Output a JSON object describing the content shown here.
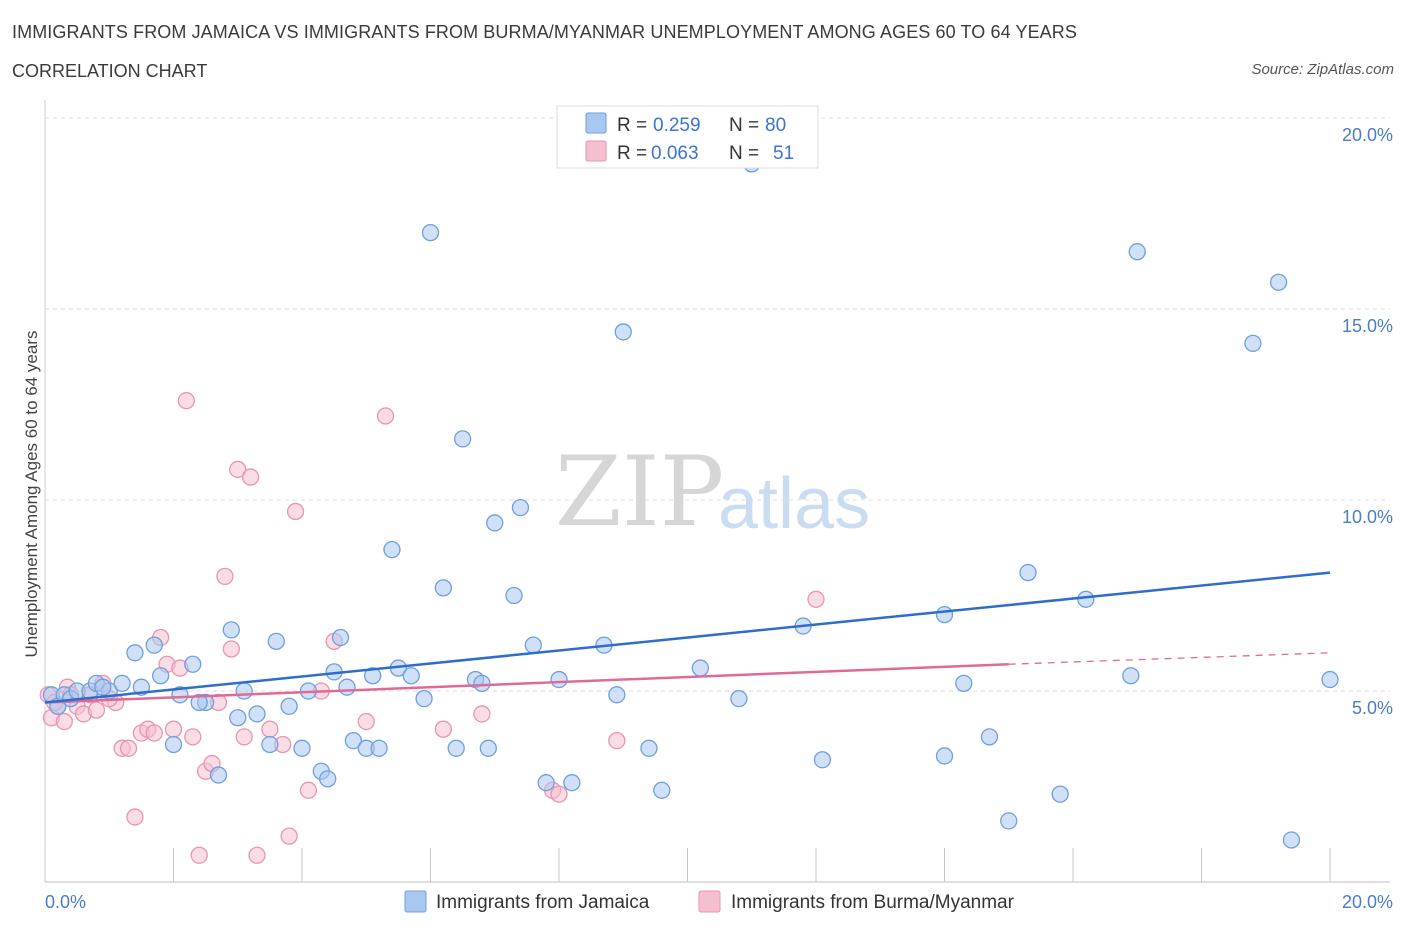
{
  "title": "IMMIGRANTS FROM JAMAICA VS IMMIGRANTS FROM BURMA/MYANMAR UNEMPLOYMENT AMONG AGES 60 TO 64 YEARS",
  "subtitle": "CORRELATION CHART",
  "source": "Source: ZipAtlas.com",
  "watermark": {
    "zip": "ZIP",
    "atlas": "atlas"
  },
  "colors": {
    "jamaica_fill": "#a9c8f0",
    "jamaica_stroke": "#6f9fdc",
    "jamaica_line": "#2f6ccc",
    "burma_fill": "#f6bfd0",
    "burma_stroke": "#e895b0",
    "burma_line": "#e06a97",
    "grid": "#dcdcdc",
    "axis_text": "#4a7cc7"
  },
  "legend": {
    "rows": [
      {
        "r_label": "R =",
        "r_value": "0.259",
        "n_label": "N =",
        "n_value": "80"
      },
      {
        "r_label": "R =",
        "r_value": "0.063",
        "n_label": "N =",
        "n_value": "51"
      }
    ]
  },
  "chart_data": {
    "type": "scatter",
    "title": "IMMIGRANTS FROM JAMAICA VS IMMIGRANTS FROM BURMA/MYANMAR UNEMPLOYMENT AMONG AGES 60 TO 64 YEARS",
    "xlabel": "",
    "ylabel": "Unemployment Among Ages 60 to 64 years",
    "xlim": [
      0,
      20
    ],
    "ylim": [
      0,
      20
    ],
    "x_tick_labels": [
      "0.0%",
      "20.0%"
    ],
    "y_ticks": [
      5,
      10,
      15,
      20
    ],
    "y_tick_labels": [
      "5.0%",
      "10.0%",
      "15.0%",
      "20.0%"
    ],
    "legend_position": "top-center",
    "series": [
      {
        "name": "Immigrants from Jamaica",
        "r": 0.259,
        "n": 80,
        "trend": {
          "x": [
            0,
            20
          ],
          "y": [
            4.7,
            8.1
          ]
        },
        "points": [
          [
            0.1,
            4.9
          ],
          [
            0.2,
            4.6
          ],
          [
            0.3,
            4.9
          ],
          [
            0.4,
            4.8
          ],
          [
            0.5,
            5.0
          ],
          [
            0.7,
            5.0
          ],
          [
            0.8,
            5.2
          ],
          [
            1.0,
            5.0
          ],
          [
            1.2,
            5.2
          ],
          [
            1.4,
            6.0
          ],
          [
            1.7,
            6.2
          ],
          [
            1.8,
            5.4
          ],
          [
            2.0,
            3.6
          ],
          [
            2.1,
            4.9
          ],
          [
            2.3,
            5.7
          ],
          [
            2.5,
            4.7
          ],
          [
            2.7,
            2.8
          ],
          [
            2.9,
            6.6
          ],
          [
            3.1,
            5.0
          ],
          [
            3.3,
            4.4
          ],
          [
            3.5,
            3.6
          ],
          [
            3.6,
            6.3
          ],
          [
            3.8,
            4.6
          ],
          [
            4.0,
            3.5
          ],
          [
            4.1,
            5.0
          ],
          [
            4.3,
            2.9
          ],
          [
            4.4,
            2.7
          ],
          [
            4.5,
            5.5
          ],
          [
            4.6,
            6.4
          ],
          [
            4.8,
            3.7
          ],
          [
            5.0,
            3.5
          ],
          [
            5.2,
            3.5
          ],
          [
            5.4,
            8.7
          ],
          [
            5.5,
            5.6
          ],
          [
            5.7,
            5.4
          ],
          [
            5.9,
            4.8
          ],
          [
            6.0,
            17.0
          ],
          [
            6.2,
            7.7
          ],
          [
            6.4,
            3.5
          ],
          [
            6.5,
            11.6
          ],
          [
            6.7,
            5.3
          ],
          [
            6.9,
            3.5
          ],
          [
            7.0,
            9.4
          ],
          [
            7.3,
            7.5
          ],
          [
            7.4,
            9.8
          ],
          [
            7.6,
            6.2
          ],
          [
            7.8,
            2.6
          ],
          [
            8.0,
            5.3
          ],
          [
            8.2,
            2.6
          ],
          [
            8.7,
            6.2
          ],
          [
            8.9,
            4.9
          ],
          [
            9.0,
            14.4
          ],
          [
            9.4,
            3.5
          ],
          [
            9.6,
            2.4
          ],
          [
            10.2,
            5.6
          ],
          [
            10.8,
            4.8
          ],
          [
            11.0,
            18.8
          ],
          [
            11.8,
            6.7
          ],
          [
            12.1,
            3.2
          ],
          [
            14.0,
            7.0
          ],
          [
            14.3,
            5.2
          ],
          [
            14.0,
            3.3
          ],
          [
            14.7,
            3.8
          ],
          [
            15.0,
            1.6
          ],
          [
            15.3,
            8.1
          ],
          [
            15.8,
            2.3
          ],
          [
            16.2,
            7.4
          ],
          [
            16.9,
            5.4
          ],
          [
            17.0,
            16.5
          ],
          [
            18.8,
            14.1
          ],
          [
            19.2,
            15.7
          ],
          [
            19.4,
            1.1
          ],
          [
            20.0,
            5.3
          ],
          [
            2.4,
            4.7
          ],
          [
            1.5,
            5.1
          ],
          [
            0.9,
            5.1
          ],
          [
            3.0,
            4.3
          ],
          [
            5.1,
            5.4
          ],
          [
            6.8,
            5.2
          ],
          [
            4.7,
            5.1
          ]
        ]
      },
      {
        "name": "Immigrants from Burma/Myanmar",
        "r": 0.063,
        "n": 51,
        "trend": {
          "x": [
            0,
            15
          ],
          "y": [
            4.7,
            5.7
          ]
        },
        "trend_dashed": {
          "x": [
            15,
            20
          ],
          "y": [
            5.7,
            6.0
          ]
        },
        "points": [
          [
            0.05,
            4.9
          ],
          [
            0.1,
            4.3
          ],
          [
            0.2,
            4.6
          ],
          [
            0.3,
            4.2
          ],
          [
            0.35,
            5.1
          ],
          [
            0.5,
            4.6
          ],
          [
            0.6,
            4.4
          ],
          [
            0.7,
            4.9
          ],
          [
            0.8,
            4.5
          ],
          [
            0.9,
            5.2
          ],
          [
            1.1,
            4.7
          ],
          [
            1.2,
            3.5
          ],
          [
            1.3,
            3.5
          ],
          [
            1.4,
            1.7
          ],
          [
            1.5,
            3.9
          ],
          [
            1.6,
            4.0
          ],
          [
            1.7,
            3.9
          ],
          [
            1.8,
            6.4
          ],
          [
            1.9,
            5.7
          ],
          [
            2.0,
            4.0
          ],
          [
            2.1,
            5.6
          ],
          [
            2.2,
            12.6
          ],
          [
            2.3,
            3.8
          ],
          [
            2.4,
            0.7
          ],
          [
            2.5,
            2.9
          ],
          [
            2.6,
            3.1
          ],
          [
            2.7,
            4.7
          ],
          [
            2.8,
            8.0
          ],
          [
            2.9,
            6.1
          ],
          [
            3.0,
            10.8
          ],
          [
            3.1,
            3.8
          ],
          [
            3.2,
            10.6
          ],
          [
            3.3,
            0.7
          ],
          [
            3.5,
            4.0
          ],
          [
            3.7,
            3.6
          ],
          [
            3.8,
            1.2
          ],
          [
            3.9,
            9.7
          ],
          [
            4.1,
            2.4
          ],
          [
            4.3,
            5.0
          ],
          [
            4.5,
            6.3
          ],
          [
            5.0,
            4.2
          ],
          [
            5.3,
            12.2
          ],
          [
            6.2,
            4.0
          ],
          [
            6.8,
            4.4
          ],
          [
            7.9,
            2.4
          ],
          [
            8.0,
            2.3
          ],
          [
            8.9,
            3.7
          ],
          [
            12.0,
            7.4
          ],
          [
            0.4,
            4.9
          ],
          [
            1.0,
            4.8
          ],
          [
            0.15,
            4.7
          ]
        ]
      }
    ]
  }
}
